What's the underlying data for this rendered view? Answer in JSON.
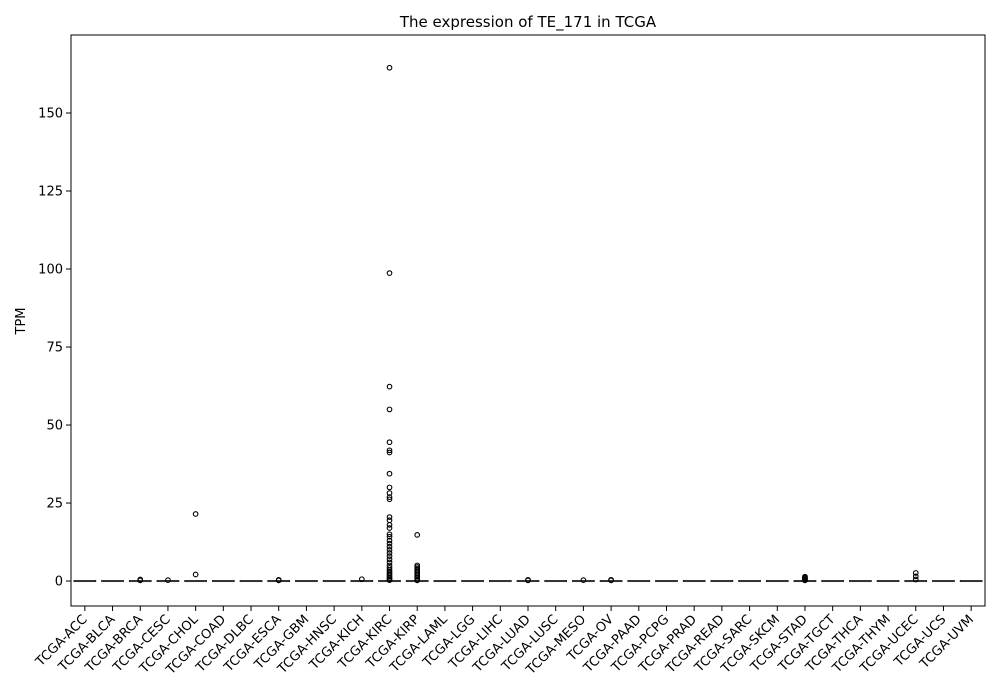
{
  "chart_data": {
    "type": "box",
    "title": "The expression of TE_171 in TCGA",
    "xlabel": "",
    "ylabel": "TPM",
    "ylim": [
      -8,
      175
    ],
    "yticks": [
      0,
      25,
      50,
      75,
      100,
      125,
      150
    ],
    "grid": false,
    "categories": [
      "TCGA-ACC",
      "TCGA-BLCA",
      "TCGA-BRCA",
      "TCGA-CESC",
      "TCGA-CHOL",
      "TCGA-COAD",
      "TCGA-DLBC",
      "TCGA-ESCA",
      "TCGA-GBM",
      "TCGA-HNSC",
      "TCGA-KICH",
      "TCGA-KIRC",
      "TCGA-KIRP",
      "TCGA-LAML",
      "TCGA-LGG",
      "TCGA-LIHC",
      "TCGA-LUAD",
      "TCGA-LUSC",
      "TCGA-MESO",
      "TCGA-OV",
      "TCGA-PAAD",
      "TCGA-PCPG",
      "TCGA-PRAD",
      "TCGA-READ",
      "TCGA-SARC",
      "TCGA-SKCM",
      "TCGA-STAD",
      "TCGA-TGCT",
      "TCGA-THCA",
      "TCGA-THYM",
      "TCGA-UCEC",
      "TCGA-UCS",
      "TCGA-UVM"
    ],
    "box_stats": {
      "q1": 0,
      "median": 0,
      "q3": 0,
      "whisker_low": 0,
      "whisker_high": 0
    },
    "outliers": [
      [],
      [],
      [
        0.2,
        0.5
      ],
      [
        0.3
      ],
      [
        2.1,
        21.5
      ],
      [],
      [],
      [
        0.2,
        0.4
      ],
      [],
      [],
      [
        0.6
      ],
      [
        164.5,
        98.7,
        62.3,
        55.0,
        44.5,
        41.9,
        41.2,
        34.4,
        30.0,
        28.2,
        26.9,
        26.2,
        20.5,
        19.5,
        18.0,
        17.0,
        15.0,
        14.2,
        13.0,
        12.0,
        11.0,
        10.0,
        9.0,
        8.0,
        7.0,
        6.0,
        5.0,
        4.2,
        3.5,
        3.0,
        2.5,
        2.0,
        1.5,
        1.0,
        0.6,
        0.3
      ],
      [
        14.8,
        5.0,
        4.5,
        4.0,
        3.5,
        3.0,
        2.5,
        2.0,
        1.5,
        1.0,
        0.5,
        0.2
      ],
      [],
      [],
      [],
      [
        0.2,
        0.4
      ],
      [],
      [
        0.3
      ],
      [
        0.2,
        0.4
      ],
      [],
      [],
      [],
      [],
      [],
      [],
      [
        0.2,
        0.5,
        0.8,
        1.1,
        1.4
      ],
      [],
      [],
      [],
      [
        0.5,
        1.5,
        2.6
      ],
      [],
      []
    ]
  }
}
